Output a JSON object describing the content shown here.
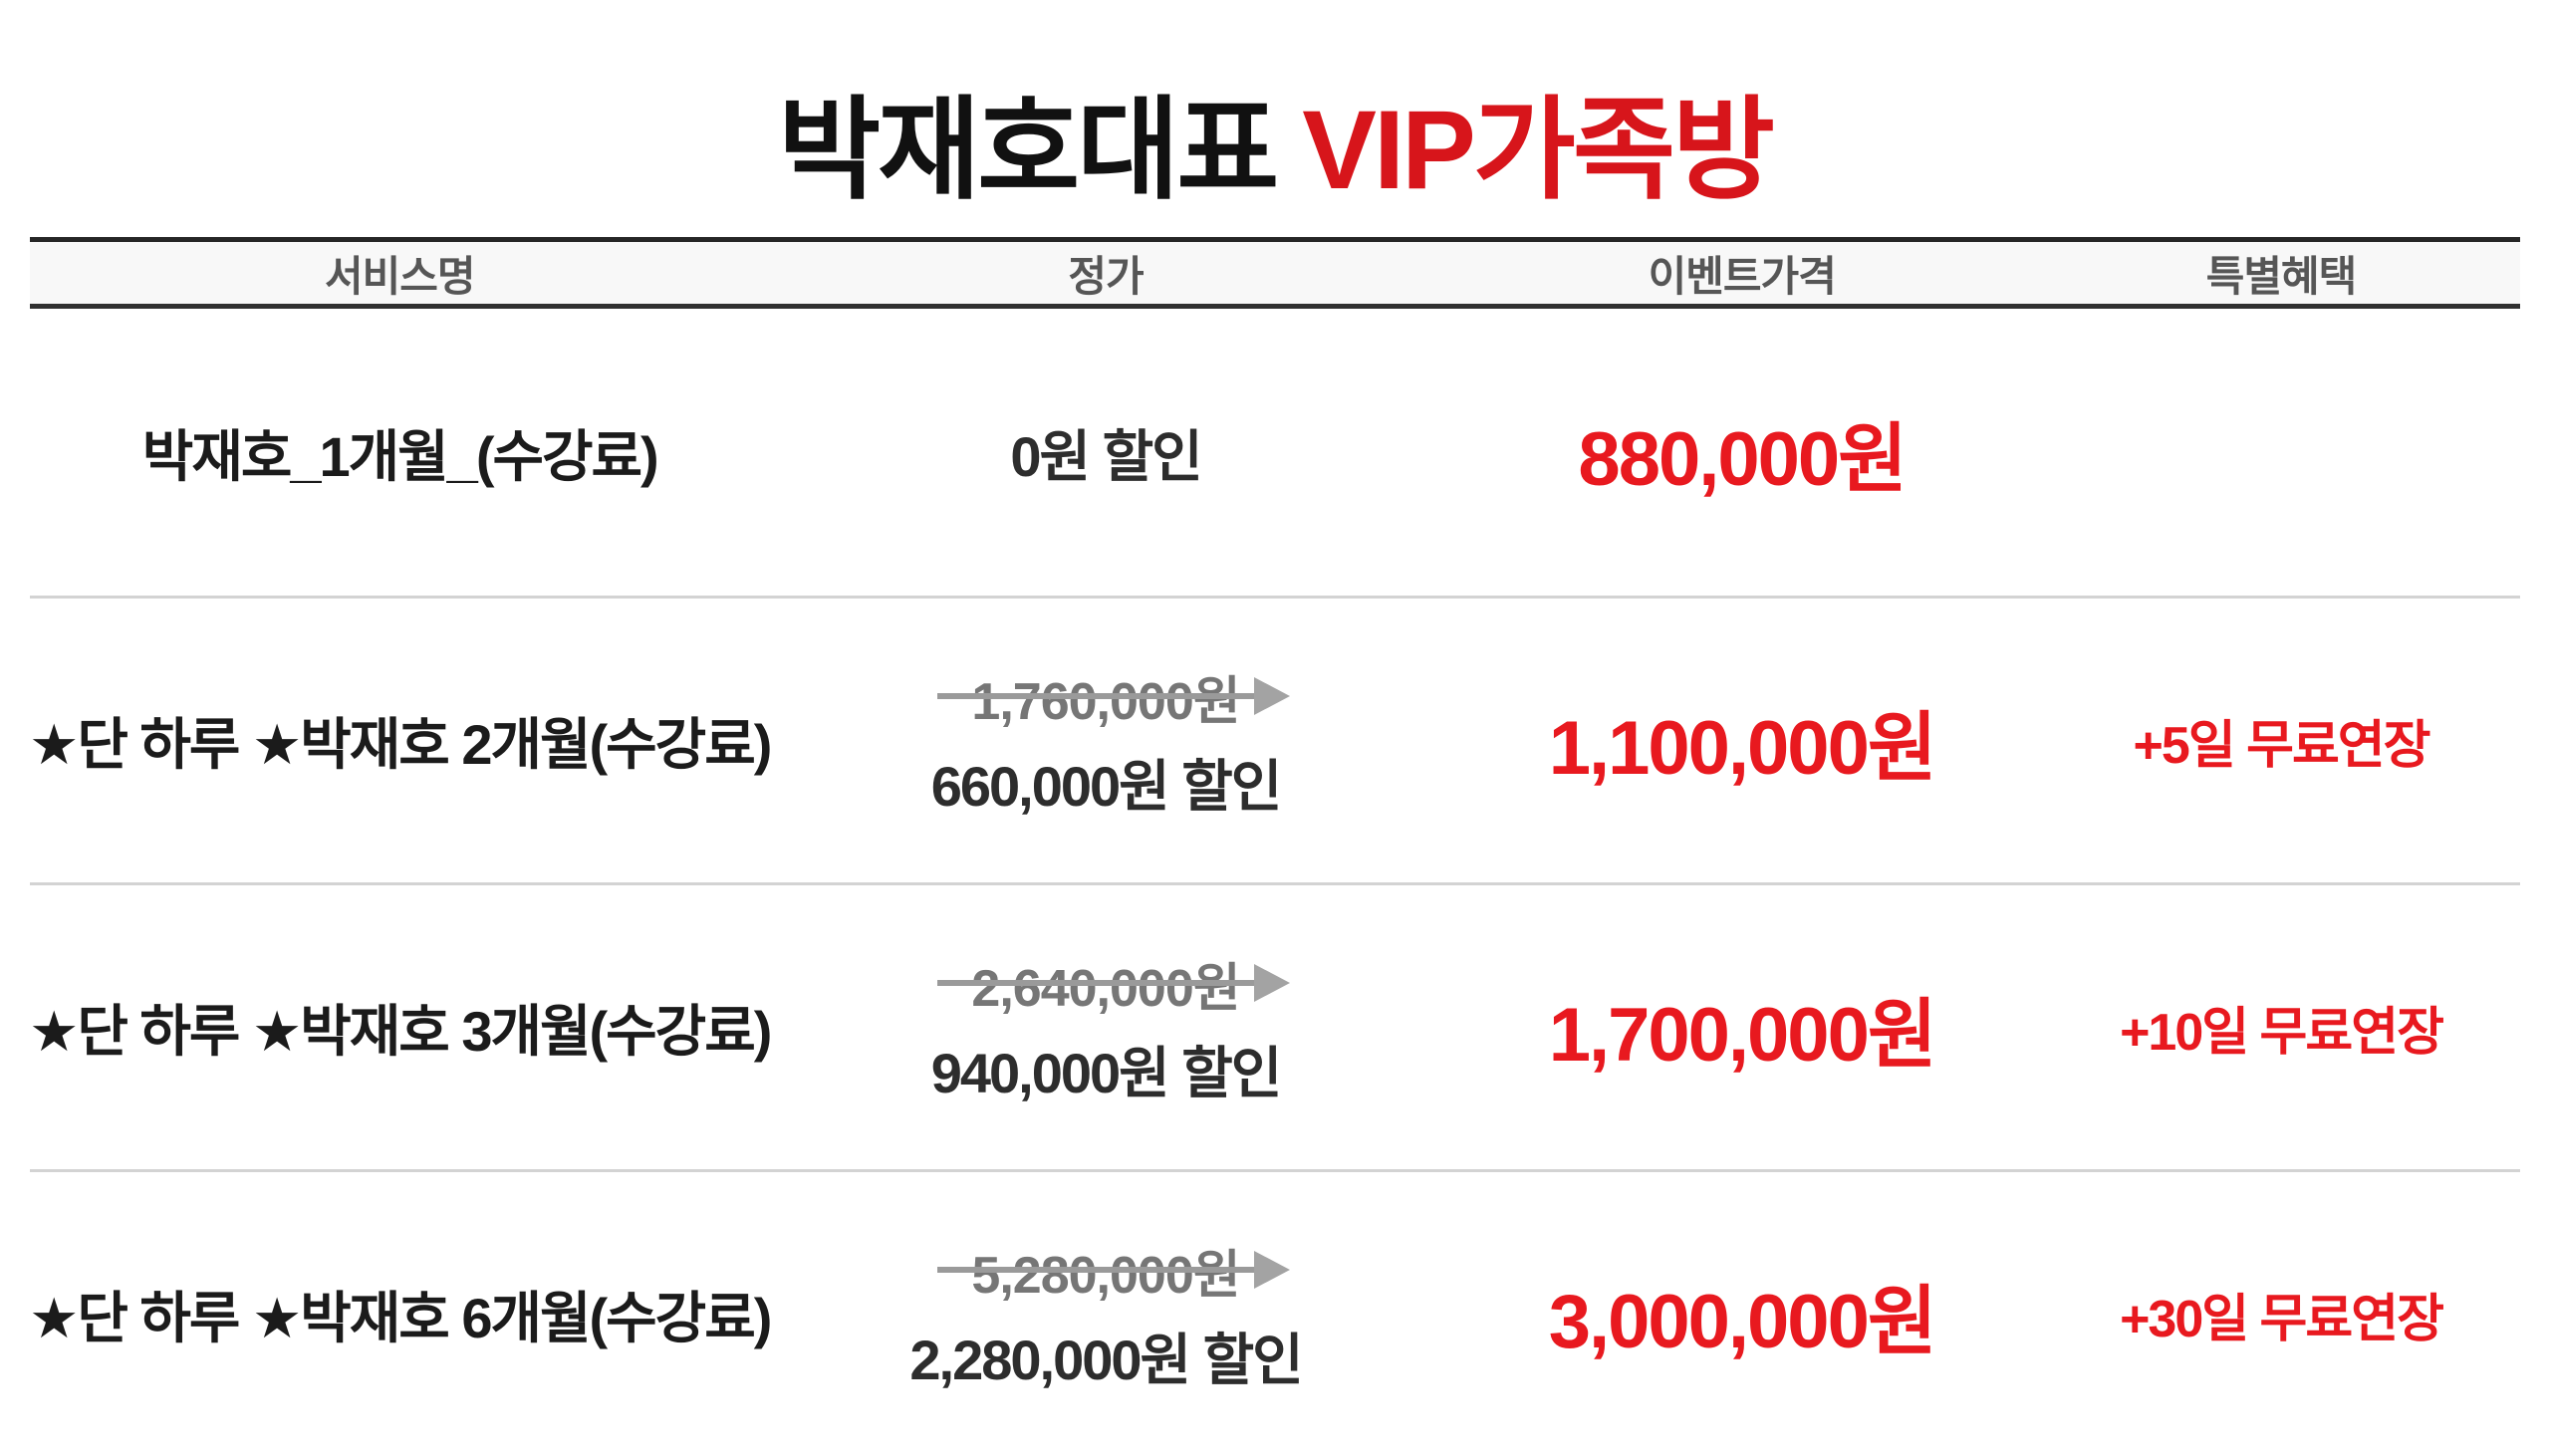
{
  "title": {
    "name": "박재호대표",
    "highlight": "VIP가족방"
  },
  "colors": {
    "title_red": "#d7151b",
    "price_red": "#e8191f",
    "strike_gray": "#9a9a9a",
    "strike_text_gray": "#767676",
    "header_text": "#565656",
    "header_bg": "#f8f8f8",
    "dark_border": "#262626",
    "row_divider": "#d3d3d3",
    "text_dark": "#1b1b1b"
  },
  "table": {
    "headers": [
      "서비스명",
      "정가",
      "이벤트가격",
      "특별혜택"
    ],
    "rows": [
      {
        "service": "박재호_1개월_(수강료)",
        "original_price": "",
        "discount": "0원 할인",
        "event_price": "880,000원",
        "benefit": ""
      },
      {
        "service": "★단 하루 ★박재호 2개월(수강료)",
        "original_price": "1,760,000원",
        "discount": "660,000원 할인",
        "event_price": "1,100,000원",
        "benefit": "+5일 무료연장"
      },
      {
        "service": "★단 하루 ★박재호 3개월(수강료)",
        "original_price": "2,640,000원",
        "discount": "940,000원 할인",
        "event_price": "1,700,000원",
        "benefit": "+10일 무료연장"
      },
      {
        "service": "★단 하루 ★박재호 6개월(수강료)",
        "original_price": "5,280,000원",
        "discount": "2,280,000원 할인",
        "event_price": "3,000,000원",
        "benefit": "+30일 무료연장"
      }
    ]
  }
}
